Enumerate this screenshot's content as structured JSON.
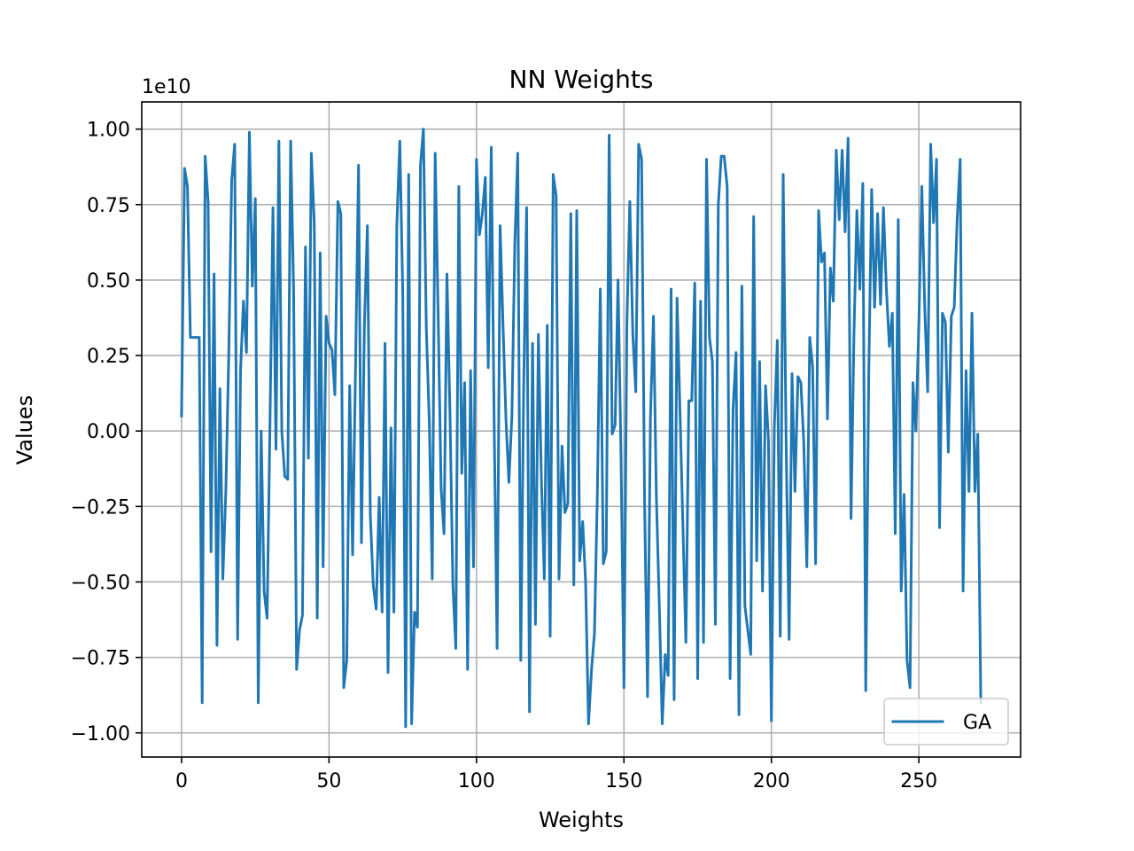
{
  "chart_data": {
    "type": "line",
    "title": "NN Weights",
    "xlabel": "Weights",
    "ylabel": "Values",
    "offset_label": "1e10",
    "xlim": [
      -13.5,
      284.5
    ],
    "ylim": [
      -1.08,
      1.09
    ],
    "y_scale": 10000000000,
    "x_ticks": [
      0,
      50,
      100,
      150,
      200,
      250
    ],
    "x_tick_labels": [
      "0",
      "50",
      "100",
      "150",
      "200",
      "250"
    ],
    "y_ticks": [
      1.0,
      0.75,
      0.5,
      0.25,
      0.0,
      -0.25,
      -0.5,
      -0.75,
      -1.0
    ],
    "y_tick_labels": [
      "1.00",
      "0.75",
      "0.50",
      "0.25",
      "0.00",
      "−0.25",
      "−0.50",
      "−0.75",
      "−1.00"
    ],
    "grid": true,
    "legend_position": "lower-right",
    "series": [
      {
        "name": "GA",
        "color": "#1f77b4",
        "x": [
          0,
          1,
          2,
          3,
          4,
          5,
          6,
          7,
          8,
          9,
          10,
          11,
          12,
          13,
          14,
          15,
          16,
          17,
          18,
          19,
          20,
          21,
          22,
          23,
          24,
          25,
          26,
          27,
          28,
          29,
          30,
          31,
          32,
          33,
          34,
          35,
          36,
          37,
          38,
          39,
          40,
          41,
          42,
          43,
          44,
          45,
          46,
          47,
          48,
          49,
          50,
          51,
          52,
          53,
          54,
          55,
          56,
          57,
          58,
          59,
          60,
          61,
          62,
          63,
          64,
          65,
          66,
          67,
          68,
          69,
          70,
          71,
          72,
          73,
          74,
          75,
          76,
          77,
          78,
          79,
          80,
          81,
          82,
          83,
          84,
          85,
          86,
          87,
          88,
          89,
          90,
          91,
          92,
          93,
          94,
          95,
          96,
          97,
          98,
          99,
          100,
          101,
          102,
          103,
          104,
          105,
          106,
          107,
          108,
          109,
          110,
          111,
          112,
          113,
          114,
          115,
          116,
          117,
          118,
          119,
          120,
          121,
          122,
          123,
          124,
          125,
          126,
          127,
          128,
          129,
          130,
          131,
          132,
          133,
          134,
          135,
          136,
          137,
          138,
          139,
          140,
          141,
          142,
          143,
          144,
          145,
          146,
          147,
          148,
          149,
          150,
          151,
          152,
          153,
          154,
          155,
          156,
          157,
          158,
          159,
          160,
          161,
          162,
          163,
          164,
          165,
          166,
          167,
          168,
          169,
          170,
          171,
          172,
          173,
          174,
          175,
          176,
          177,
          178,
          179,
          180,
          181,
          182,
          183,
          184,
          185,
          186,
          187,
          188,
          189,
          190,
          191,
          192,
          193,
          194,
          195,
          196,
          197,
          198,
          199,
          200,
          201,
          202,
          203,
          204,
          205,
          206,
          207,
          208,
          209,
          210,
          211,
          212,
          213,
          214,
          215,
          216,
          217,
          218,
          219,
          220,
          221,
          222,
          223,
          224,
          225,
          226,
          227,
          228,
          229,
          230,
          231,
          232,
          233,
          234,
          235,
          236,
          237,
          238,
          239,
          240,
          241,
          242,
          243,
          244,
          245,
          246,
          247,
          248,
          249,
          250,
          251,
          252,
          253,
          254,
          255,
          256,
          257,
          258,
          259,
          260,
          261,
          262,
          263,
          264,
          265,
          266,
          267,
          268,
          269,
          270,
          271
        ],
        "values": [
          0.05,
          0.87,
          0.81,
          0.31,
          0.31,
          0.31,
          0.31,
          -0.9,
          0.91,
          0.76,
          -0.4,
          0.52,
          -0.71,
          0.14,
          -0.49,
          -0.2,
          0.25,
          0.83,
          0.95,
          -0.69,
          0.2,
          0.43,
          0.26,
          0.99,
          0.48,
          0.77,
          -0.9,
          0.0,
          -0.53,
          -0.62,
          0.04,
          0.74,
          -0.06,
          0.96,
          0.0,
          -0.15,
          -0.16,
          0.96,
          0.47,
          -0.79,
          -0.66,
          -0.61,
          0.61,
          -0.09,
          0.92,
          0.69,
          -0.62,
          0.59,
          -0.45,
          0.38,
          0.29,
          0.27,
          0.12,
          0.76,
          0.72,
          -0.85,
          -0.76,
          0.15,
          -0.41,
          0.21,
          0.88,
          -0.37,
          0.35,
          0.68,
          -0.28,
          -0.51,
          -0.59,
          -0.22,
          -0.6,
          0.29,
          -0.8,
          0.01,
          -0.6,
          0.68,
          0.96,
          0.46,
          -0.98,
          0.85,
          -0.97,
          -0.6,
          -0.65,
          0.88,
          1.0,
          0.34,
          0.03,
          -0.49,
          0.92,
          0.38,
          -0.19,
          -0.34,
          0.52,
          0.06,
          -0.51,
          -0.72,
          0.81,
          -0.14,
          0.16,
          -0.79,
          0.2,
          -0.45,
          0.9,
          0.65,
          0.72,
          0.84,
          0.21,
          0.94,
          0.02,
          -0.72,
          0.68,
          0.35,
          0.04,
          -0.17,
          0.05,
          0.62,
          0.92,
          -0.76,
          0.14,
          0.74,
          -0.93,
          0.29,
          -0.64,
          0.32,
          -0.16,
          -0.49,
          0.35,
          -0.68,
          0.85,
          0.78,
          -0.49,
          -0.05,
          -0.27,
          -0.24,
          0.72,
          -0.51,
          0.73,
          -0.43,
          -0.3,
          -0.5,
          -0.97,
          -0.79,
          -0.67,
          -0.2,
          0.47,
          -0.44,
          -0.4,
          0.98,
          -0.01,
          0.02,
          0.5,
          -0.07,
          -0.85,
          0.36,
          0.76,
          0.32,
          0.13,
          0.95,
          0.9,
          -0.24,
          -0.88,
          0.05,
          0.38,
          -0.22,
          -0.58,
          -0.97,
          -0.74,
          -0.81,
          0.47,
          -0.89,
          0.44,
          0.07,
          -0.31,
          -0.7,
          0.1,
          0.1,
          0.49,
          -0.82,
          0.43,
          -0.7,
          0.9,
          0.31,
          0.23,
          -0.64,
          0.75,
          0.91,
          0.91,
          0.81,
          -0.82,
          0.07,
          0.26,
          -0.94,
          0.48,
          -0.58,
          -0.66,
          -0.74,
          0.71,
          -0.43,
          0.23,
          -0.53,
          0.15,
          -0.03,
          -0.96,
          0.01,
          0.3,
          -0.68,
          0.85,
          -0.05,
          -0.69,
          0.19,
          -0.2,
          0.18,
          0.16,
          -0.04,
          -0.45,
          0.31,
          0.21,
          -0.44,
          0.73,
          0.56,
          0.59,
          0.04,
          0.54,
          0.43,
          0.93,
          0.7,
          0.93,
          0.66,
          0.97,
          -0.29,
          0.32,
          0.73,
          0.47,
          0.82,
          -0.86,
          0.19,
          0.8,
          0.41,
          0.72,
          0.42,
          0.74,
          0.47,
          0.28,
          0.39,
          -0.34,
          0.7,
          -0.53,
          -0.21,
          -0.76,
          -0.85,
          0.16,
          0.0,
          0.36,
          0.81,
          0.41,
          0.13,
          0.95,
          0.69,
          0.9,
          -0.32,
          0.39,
          0.36,
          -0.07,
          0.38,
          0.41,
          0.7,
          0.9,
          -0.53,
          0.2,
          -0.2,
          0.39,
          -0.2,
          -0.01,
          -0.9
        ]
      }
    ]
  }
}
